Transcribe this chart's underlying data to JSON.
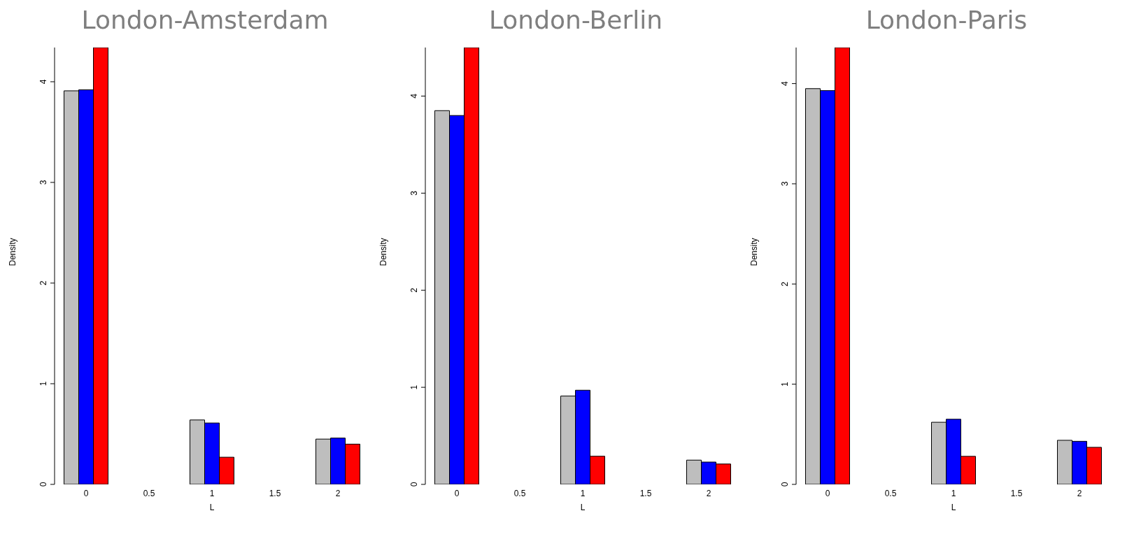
{
  "chart_data": [
    {
      "type": "bar",
      "title": "London-Amsterdam",
      "xlabel": "L",
      "ylabel": "Density",
      "categories": [
        "0",
        "0.5",
        "1",
        "1.5",
        "2"
      ],
      "series": [
        {
          "color": "#bebebe",
          "values": [
            3.91,
            0,
            0.64,
            0,
            0.45
          ]
        },
        {
          "color": "#0000ff",
          "values": [
            3.92,
            0,
            0.61,
            0,
            0.46
          ]
        },
        {
          "color": "#ff0000",
          "values": [
            4.34,
            0,
            0.27,
            0,
            0.4
          ]
        }
      ],
      "ylim": [
        0,
        4.34
      ],
      "yticks": [
        0,
        1,
        2,
        3,
        4
      ],
      "grid": false,
      "legend": false
    },
    {
      "type": "bar",
      "title": "London-Berlin",
      "xlabel": "L",
      "ylabel": "Density",
      "categories": [
        "0",
        "0.5",
        "1",
        "1.5",
        "2"
      ],
      "series": [
        {
          "color": "#bebebe",
          "values": [
            3.85,
            0,
            0.91,
            0,
            0.25
          ]
        },
        {
          "color": "#0000ff",
          "values": [
            3.8,
            0,
            0.97,
            0,
            0.23
          ]
        },
        {
          "color": "#ff0000",
          "values": [
            4.5,
            0,
            0.29,
            0,
            0.21
          ]
        }
      ],
      "ylim": [
        0,
        4.5
      ],
      "yticks": [
        0,
        1,
        2,
        3,
        4
      ],
      "grid": false,
      "legend": false
    },
    {
      "type": "bar",
      "title": "London-Paris",
      "xlabel": "L",
      "ylabel": "Density",
      "categories": [
        "0",
        "0.5",
        "1",
        "1.5",
        "2"
      ],
      "series": [
        {
          "color": "#bebebe",
          "values": [
            3.95,
            0,
            0.62,
            0,
            0.44
          ]
        },
        {
          "color": "#0000ff",
          "values": [
            3.93,
            0,
            0.65,
            0,
            0.43
          ]
        },
        {
          "color": "#ff0000",
          "values": [
            4.36,
            0,
            0.28,
            0,
            0.37
          ]
        }
      ],
      "ylim": [
        0,
        4.36
      ],
      "yticks": [
        0,
        1,
        2,
        3,
        4
      ],
      "grid": false,
      "legend": false
    }
  ]
}
